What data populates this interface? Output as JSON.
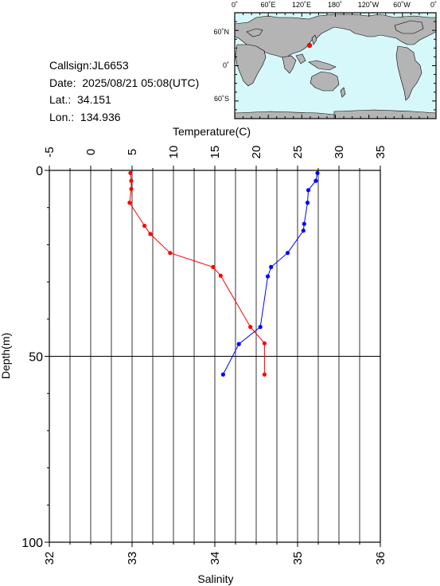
{
  "station": {
    "callsign_line": "Callsign:JL6653",
    "date_line": "Date:  2025/08/21 05:08(UTC)",
    "lat_line": "Lat.:  34.151",
    "lon_line": "Lon.:  134.936"
  },
  "map": {
    "lon_ticks": [
      "0˚",
      "60˚E",
      "120˚E",
      "180˚",
      "120˚W",
      "60˚W",
      "0˚"
    ],
    "lat_ticks": [
      "60˚N",
      "0˚",
      "60˚S"
    ],
    "ocean_color": "#d6f8fb",
    "land_color": "#b4b4b4",
    "marker_color": "#ff0000"
  },
  "chart_data": {
    "type": "line",
    "temperature_axis": {
      "label": "Temperature(C)",
      "range": [
        -5,
        35
      ],
      "ticks": [
        "-5",
        "0",
        "5",
        "10",
        "15",
        "20",
        "25",
        "30",
        "35"
      ]
    },
    "salinity_axis": {
      "label": "Salinity",
      "range": [
        32,
        36
      ],
      "ticks": [
        "32",
        "33",
        "34",
        "35",
        "36"
      ]
    },
    "depth_axis": {
      "label": "Depth(m)",
      "range": [
        0,
        100
      ],
      "ticks": [
        "0",
        "50",
        "100"
      ],
      "inverted": true
    },
    "grid": true,
    "series": [
      {
        "variable": "temperature",
        "color": "#ff0000",
        "depth": [
          0.7,
          2.8,
          5.0,
          8.7,
          14.9,
          17.1,
          22.2,
          26.0,
          28.3,
          42.1,
          46.5,
          54.9
        ],
        "values": [
          4.8,
          4.9,
          4.9,
          4.7,
          6.5,
          7.2,
          9.6,
          14.8,
          15.7,
          19.3,
          21.0,
          21.0
        ]
      },
      {
        "variable": "salinity",
        "color": "#0000ff",
        "depth": [
          0.7,
          2.8,
          5.3,
          8.7,
          14.4,
          16.2,
          22.2,
          26.0,
          28.5,
          42.1,
          46.7,
          54.9
        ],
        "values": [
          35.24,
          35.22,
          35.13,
          35.12,
          35.08,
          35.07,
          34.88,
          34.68,
          34.64,
          34.55,
          34.29,
          34.1
        ]
      }
    ]
  }
}
